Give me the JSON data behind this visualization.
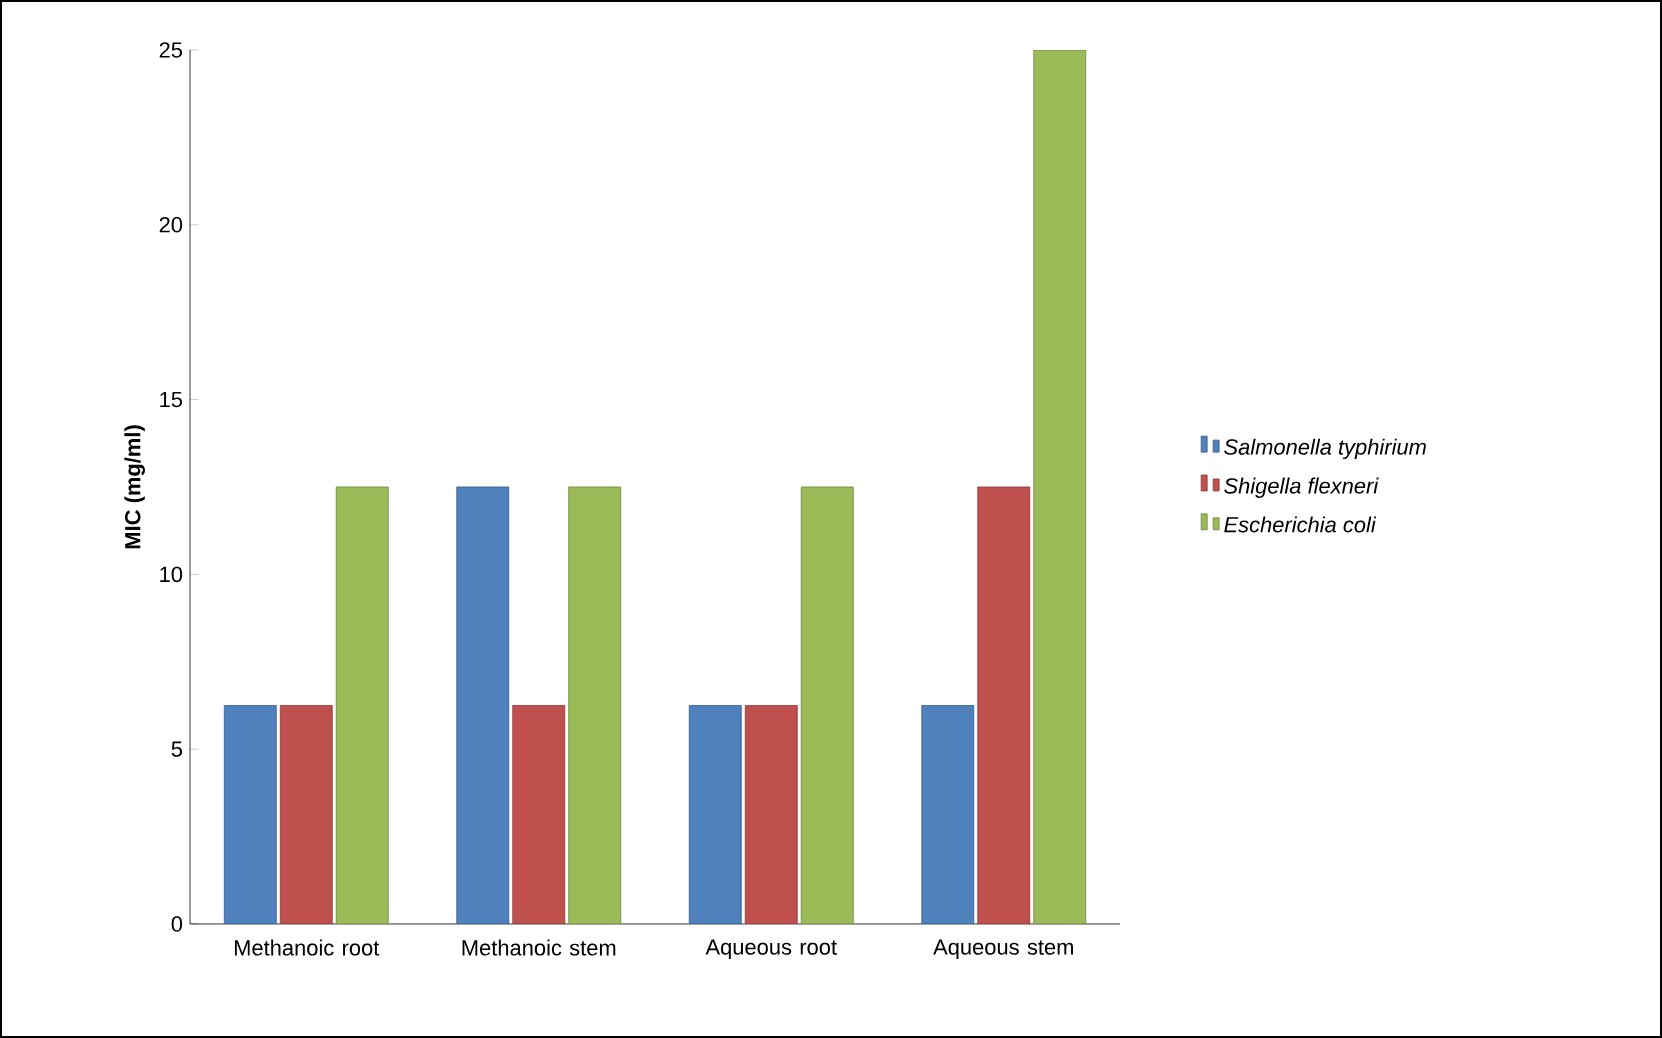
{
  "chart_data": {
    "type": "bar",
    "ylabel": "MIC (mg/ml)",
    "categories": [
      "Methanoic root",
      "Methanoic stem",
      "Aqueous root",
      "Aqueous stem"
    ],
    "series": [
      {
        "name": "Salmonella typhirium",
        "color": "#4f81bd",
        "values": [
          6.25,
          12.5,
          6.25,
          6.25
        ]
      },
      {
        "name": "Shigella flexneri",
        "color": "#c0504d",
        "values": [
          6.25,
          6.25,
          6.25,
          12.5
        ]
      },
      {
        "name": "Escherichia coli",
        "color": "#9bbb59",
        "values": [
          12.5,
          12.5,
          12.5,
          25
        ]
      }
    ],
    "ylim": [
      0,
      25
    ],
    "yticks": [
      0,
      5,
      10,
      15,
      20,
      25
    ],
    "grid": false,
    "legend": "right"
  }
}
